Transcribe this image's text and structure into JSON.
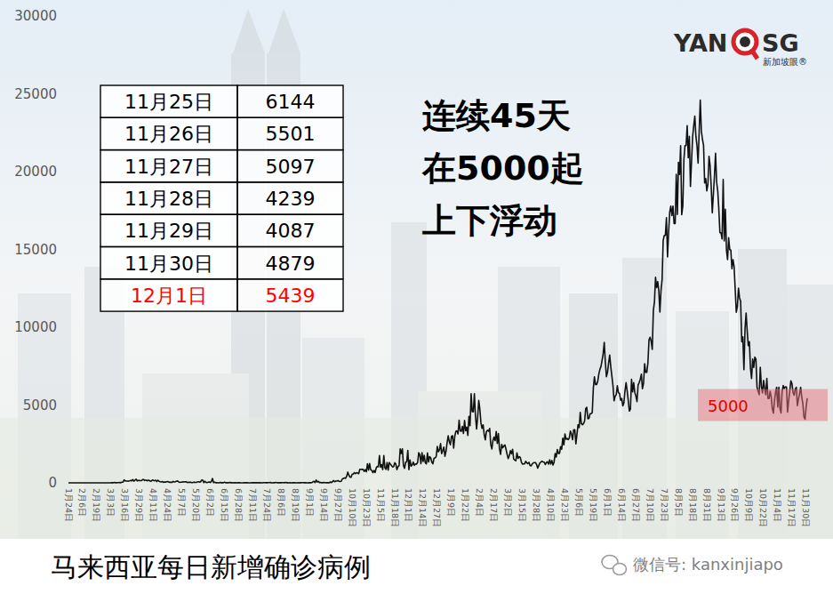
{
  "chart_data": {
    "type": "line",
    "title": "马来西亚每日新增确诊病例",
    "color": "#111111",
    "grid": false,
    "ylim": [
      0,
      30000
    ],
    "yticks": [
      0,
      5000,
      10000,
      15000,
      20000,
      25000,
      30000
    ],
    "band": {
      "label": "5000",
      "value": 5000
    },
    "categories": [
      "1月24日",
      null,
      null,
      null,
      null,
      null,
      null,
      null,
      null,
      null,
      null,
      null,
      null,
      "2月6日",
      null,
      null,
      null,
      null,
      null,
      null,
      null,
      null,
      null,
      null,
      null,
      null,
      "2月19日",
      null,
      null,
      null,
      null,
      null,
      null,
      null,
      null,
      null,
      null,
      null,
      null,
      "3月3日",
      null,
      null,
      null,
      null,
      null,
      null,
      null,
      null,
      null,
      null,
      null,
      null,
      "3月16日",
      null,
      null,
      null,
      null,
      null,
      null,
      null,
      null,
      null,
      null,
      null,
      null,
      "3月29日",
      null,
      null,
      null,
      null,
      null,
      null,
      null,
      null,
      null,
      null,
      null,
      null,
      "4月11日",
      null,
      null,
      null,
      null,
      null,
      null,
      null,
      null,
      null,
      null,
      null,
      null,
      "4月24日",
      null,
      null,
      null,
      null,
      null,
      null,
      null,
      null,
      null,
      null,
      null,
      null,
      "5月7日",
      null,
      null,
      null,
      null,
      null,
      null,
      null,
      null,
      null,
      null,
      null,
      null,
      "5月20日",
      null,
      null,
      null,
      null,
      null,
      null,
      null,
      null,
      null,
      null,
      null,
      null,
      "6月2日",
      null,
      null,
      null,
      null,
      null,
      null,
      null,
      null,
      null,
      null,
      null,
      null,
      "6月15日",
      null,
      null,
      null,
      null,
      null,
      null,
      null,
      null,
      null,
      null,
      null,
      null,
      "6月28日",
      null,
      null,
      null,
      null,
      null,
      null,
      null,
      null,
      null,
      null,
      null,
      null,
      "7月11日",
      null,
      null,
      null,
      null,
      null,
      null,
      null,
      null,
      null,
      null,
      null,
      null,
      "7月24日",
      null,
      null,
      null,
      null,
      null,
      null,
      null,
      null,
      null,
      null,
      null,
      null,
      "8月6日",
      null,
      null,
      null,
      null,
      null,
      null,
      null,
      null,
      null,
      null,
      null,
      null,
      "8月19日",
      null,
      null,
      null,
      null,
      null,
      null,
      null,
      null,
      null,
      null,
      null,
      null,
      "9月1日",
      null,
      null,
      null,
      null,
      null,
      null,
      null,
      null,
      null,
      null,
      null,
      null,
      "9月14日",
      null,
      null,
      null,
      null,
      null,
      null,
      null,
      null,
      null,
      null,
      null,
      null,
      "9月27日",
      null,
      null,
      null,
      null,
      null,
      null,
      null,
      null,
      null,
      null,
      null,
      null,
      "10月10日",
      null,
      null,
      null,
      null,
      null,
      null,
      null,
      null,
      null,
      null,
      null,
      null,
      "10月23日",
      null,
      null,
      null,
      null,
      null,
      null,
      null,
      null,
      null,
      null,
      null,
      null,
      "11月5日",
      null,
      null,
      null,
      null,
      null,
      null,
      null,
      null,
      null,
      null,
      null,
      null,
      "11月18日",
      null,
      null,
      null,
      null,
      null,
      null,
      null,
      null,
      null,
      null,
      null,
      null,
      "12月1日",
      null,
      null,
      null,
      null,
      null,
      null,
      null,
      null,
      null,
      null,
      null,
      null,
      "12月14日",
      null,
      null,
      null,
      null,
      null,
      null,
      null,
      null,
      null,
      null,
      null,
      null,
      "12月27日",
      null,
      null,
      null,
      null,
      null,
      null,
      null,
      null,
      null,
      null,
      null,
      null,
      "1月9日",
      null,
      null,
      null,
      null,
      null,
      null,
      null,
      null,
      null,
      null,
      null,
      null,
      "1月22日",
      null,
      null,
      null,
      null,
      null,
      null,
      null,
      null,
      null,
      null,
      null,
      null,
      "2月4日",
      null,
      null,
      null,
      null,
      null,
      null,
      null,
      null,
      null,
      null,
      null,
      null,
      "2月17日",
      null,
      null,
      null,
      null,
      null,
      null,
      null,
      null,
      null,
      null,
      null,
      null,
      "3月2日",
      null,
      null,
      null,
      null,
      null,
      null,
      null,
      null,
      null,
      null,
      null,
      null,
      "3月15日",
      null,
      null,
      null,
      null,
      null,
      null,
      null,
      null,
      null,
      null,
      null,
      null,
      "3月28日",
      null,
      null,
      null,
      null,
      null,
      null,
      null,
      null,
      null,
      null,
      null,
      null,
      "4月10日",
      null,
      null,
      null,
      null,
      null,
      null,
      null,
      null,
      null,
      null,
      null,
      null,
      "4月23日",
      null,
      null,
      null,
      null,
      null,
      null,
      null,
      null,
      null,
      null,
      null,
      null,
      "5月6日",
      null,
      null,
      null,
      null,
      null,
      null,
      null,
      null,
      null,
      null,
      null,
      null,
      "5月19日",
      null,
      null,
      null,
      null,
      null,
      null,
      null,
      null,
      null,
      null,
      null,
      null,
      "6月1日",
      null,
      null,
      null,
      null,
      null,
      null,
      null,
      null,
      null,
      null,
      null,
      null,
      "6月14日",
      null,
      null,
      null,
      null,
      null,
      null,
      null,
      null,
      null,
      null,
      null,
      null,
      "6月27日",
      null,
      null,
      null,
      null,
      null,
      null,
      null,
      null,
      null,
      null,
      null,
      null,
      "7月10日",
      null,
      null,
      null,
      null,
      null,
      null,
      null,
      null,
      null,
      null,
      null,
      null,
      "7月23日",
      null,
      null,
      null,
      null,
      null,
      null,
      null,
      null,
      null,
      null,
      null,
      null,
      "8月5日",
      null,
      null,
      null,
      null,
      null,
      null,
      null,
      null,
      null,
      null,
      null,
      null,
      "8月18日",
      null,
      null,
      null,
      null,
      null,
      null,
      null,
      null,
      null,
      null,
      null,
      null,
      "8月31日",
      null,
      null,
      null,
      null,
      null,
      null,
      null,
      null,
      null,
      null,
      null,
      null,
      "9月13日",
      null,
      null,
      null,
      null,
      null,
      null,
      null,
      null,
      null,
      null,
      null,
      null,
      "9月26日",
      null,
      null,
      null,
      null,
      null,
      null,
      null,
      null,
      null,
      null,
      null,
      null,
      "10月9日",
      null,
      null,
      null,
      null,
      null,
      null,
      null,
      null,
      null,
      null,
      null,
      null,
      "10月22日",
      null,
      null,
      null,
      null,
      null,
      null,
      null,
      null,
      null,
      null,
      null,
      null,
      "11月4日",
      null,
      null,
      null,
      null,
      null,
      null,
      null,
      null,
      null,
      null,
      null,
      null,
      "11月17日",
      null,
      null,
      null,
      null,
      null,
      null,
      null,
      null,
      null,
      null,
      null,
      null,
      "11月30日",
      null
    ],
    "values": [
      0,
      3,
      1,
      0,
      0,
      0,
      0,
      0,
      0,
      0,
      1,
      0,
      2,
      2,
      0,
      1,
      1,
      0,
      0,
      0,
      0,
      0,
      0,
      0,
      0,
      0,
      0,
      0,
      0,
      0,
      0,
      0,
      0,
      0,
      0,
      0,
      0,
      0,
      4,
      7,
      14,
      5,
      28,
      10,
      5,
      18,
      12,
      20,
      9,
      39,
      41,
      190,
      125,
      120,
      117,
      110,
      130,
      153,
      123,
      212,
      106,
      172,
      235,
      130,
      159,
      150,
      140,
      142,
      208,
      217,
      150,
      179,
      131,
      170,
      156,
      109,
      118,
      184,
      153,
      134,
      170,
      85,
      170,
      110,
      69,
      54,
      84,
      36,
      57,
      50,
      71,
      88,
      51,
      38,
      40,
      31,
      94,
      57,
      69,
      105,
      122,
      55,
      30,
      45,
      39,
      68,
      54,
      67,
      70,
      16,
      37,
      40,
      36,
      17,
      22,
      47,
      37,
      31,
      50,
      78,
      48,
      60,
      172,
      187,
      15,
      103,
      30,
      20,
      38,
      57,
      20,
      93,
      277,
      19,
      37,
      8,
      7,
      2,
      4,
      31,
      7,
      7,
      7,
      41,
      8,
      8,
      6,
      10,
      21,
      6,
      8,
      3,
      10,
      12,
      4,
      12,
      8,
      6,
      4,
      2,
      3,
      6,
      7,
      5,
      6,
      2,
      3,
      3,
      13,
      7,
      6,
      8,
      7,
      10,
      6,
      9,
      8,
      3,
      5,
      15,
      12,
      7,
      6,
      13,
      11,
      23,
      7,
      4,
      9,
      10,
      20,
      18,
      8,
      13,
      8,
      6,
      18,
      13,
      7,
      25,
      9,
      12,
      2,
      10,
      3,
      5,
      9,
      14,
      6,
      3,
      7,
      2,
      5,
      6,
      18,
      12,
      7,
      9,
      5,
      4,
      6,
      10,
      8,
      11,
      62,
      100,
      13,
      182,
      50,
      100,
      23,
      26,
      10,
      9,
      20,
      13,
      5,
      5,
      15,
      5,
      57,
      18,
      82,
      147,
      71,
      111,
      115,
      150,
      101,
      89,
      101,
      260,
      287,
      317,
      293,
      432,
      691,
      489,
      374,
      354,
      561,
      563,
      660,
      589,
      660,
      629,
      589,
      869,
      871,
      865,
      862,
      732,
      847,
      710,
      1228,
      823,
      1240,
      835,
      801,
      649,
      799,
      659,
      957,
      1054,
      1032,
      1755,
      1009,
      1168,
      852,
      1755,
      972,
      869,
      1304,
      822,
      1304,
      1208,
      1114,
      1022,
      1041,
      1290,
      1208,
      849,
      1041,
      1103,
      2188,
      1884,
      2188,
      1109,
      935,
      1315,
      1366,
      2076,
      851,
      1472,
      1075,
      1141,
      1335,
      1123,
      1213,
      1200,
      1313,
      1937,
      1810,
      1229,
      1937,
      1371,
      1772,
      1295,
      1220,
      1925,
      1340,
      1689,
      1599,
      1330,
      1224,
      1581,
      1599,
      1692,
      2335,
      1989,
      2123,
      2525,
      1870,
      2068,
      2295,
      1704,
      2027,
      2593,
      3027,
      2643,
      2451,
      2985,
      3027,
      2232,
      2985,
      3309,
      3337,
      3142,
      4029,
      3339,
      3306,
      3631,
      3170,
      4008,
      3346,
      3585,
      3048,
      4275,
      3680,
      5725,
      4571,
      4566,
      5728,
      4284,
      3455,
      4214,
      5298,
      4734,
      3847,
      3499,
      3731,
      3100,
      2764,
      3288,
      3384,
      3317,
      3499,
      2464,
      2176,
      2720,
      2936,
      2712,
      3297,
      2528,
      3171,
      2192,
      1828,
      2468,
      2253,
      2364,
      2437,
      2154,
      1828,
      1555,
      1745,
      2063,
      1868,
      2154,
      1529,
      1470,
      1415,
      1924,
      1575,
      1680,
      1648,
      1354,
      1208,
      1213,
      1219,
      1385,
      1287,
      1237,
      1320,
      1116,
      1089,
      1217,
      1288,
      1299,
      1302,
      1183,
      941,
      1109,
      1283,
      1334,
      1394,
      1348,
      1331,
      1174,
      1304,
      1358,
      1199,
      1479,
      1207,
      1436,
      1142,
      1319,
      1884,
      1661,
      2145,
      1889,
      1889,
      2331,
      2156,
      2875,
      2440,
      3142,
      2802,
      2847,
      2776,
      2888,
      3332,
      3137,
      2771,
      3418,
      3418,
      2500,
      3120,
      3744,
      3551,
      4519,
      3807,
      3734,
      3807,
      3973,
      4765,
      4855,
      4113,
      4140,
      4446,
      4446,
      4519,
      6075,
      6806,
      6320,
      6320,
      6509,
      6976,
      7289,
      7478,
      7857,
      8290,
      9020,
      7748,
      6824,
      7105,
      7703,
      8209,
      7452,
      6849,
      6241,
      5271,
      5566,
      5671,
      6239,
      5793,
      5743,
      5304,
      5419,
      4949,
      5150,
      5911,
      6440,
      5911,
      5293,
      4611,
      4743,
      6654,
      5841,
      6440,
      5803,
      5586,
      5218,
      6276,
      6437,
      6658,
      6982,
      6045,
      6387,
      7654,
      7097,
      7097,
      7703,
      9180,
      9353,
      9105,
      8574,
      11079,
      11618,
      13215,
      12541,
      12933,
      12366,
      10972,
      12366,
      13034,
      15573,
      15902,
      15902,
      17045,
      14516,
      16117,
      17405,
      17786,
      17170,
      17786,
      16666,
      16666,
      19819,
      17240,
      20596,
      19819,
      21668,
      17236,
      17786,
      20780,
      21668,
      21668,
      22948,
      20889,
      22262,
      19045,
      20670,
      22242,
      22948,
      23564,
      22262,
      21668,
      20546,
      22597,
      24599,
      22597,
      22070,
      21712,
      19268,
      19550,
      18762,
      19198,
      20988,
      20396,
      19057,
      17352,
      18547,
      19733,
      21176,
      19307,
      18762,
      17577,
      16073,
      16073,
      15669,
      19495,
      15549,
      17577,
      14954,
      14345,
      15759,
      14990,
      14954,
      13754,
      14345,
      13899,
      12434,
      10959,
      11332,
      12510,
      11889,
      11658,
      9066,
      9380,
      7276,
      9890,
      10915,
      9751,
      8817,
      9066,
      7373,
      6709,
      7950,
      7420,
      8084,
      7950,
      6145,
      5880,
      5666,
      7420,
      6210,
      5772,
      6586,
      6065,
      5666,
      6709,
      5434,
      5409,
      5880,
      5524,
      4782,
      4478,
      5288,
      5812,
      6145,
      4879,
      6145,
      4782,
      4491,
      5857,
      6255,
      6064,
      6164,
      6154,
      4547,
      5288,
      5880,
      6548,
      6380,
      5809,
      5629,
      6022,
      6140,
      4959,
      5377,
      5712,
      6144,
      5501,
      5097,
      4239,
      4087,
      4879,
      5439
    ]
  },
  "table": {
    "rows": [
      [
        "11月25日",
        6144
      ],
      [
        "11月26日",
        5501
      ],
      [
        "11月27日",
        5097
      ],
      [
        "11月28日",
        4239
      ],
      [
        "11月29日",
        4087
      ],
      [
        "11月30日",
        4879
      ],
      [
        "12月1日",
        5439
      ]
    ]
  },
  "annotation": {
    "lines": [
      "连续45天",
      "在5000起",
      "上下浮动"
    ]
  },
  "logo": {
    "left": "YAN",
    "right": "SG",
    "sub": "新加坡眼®"
  },
  "watermark": "微信号: kanxinjiapo"
}
